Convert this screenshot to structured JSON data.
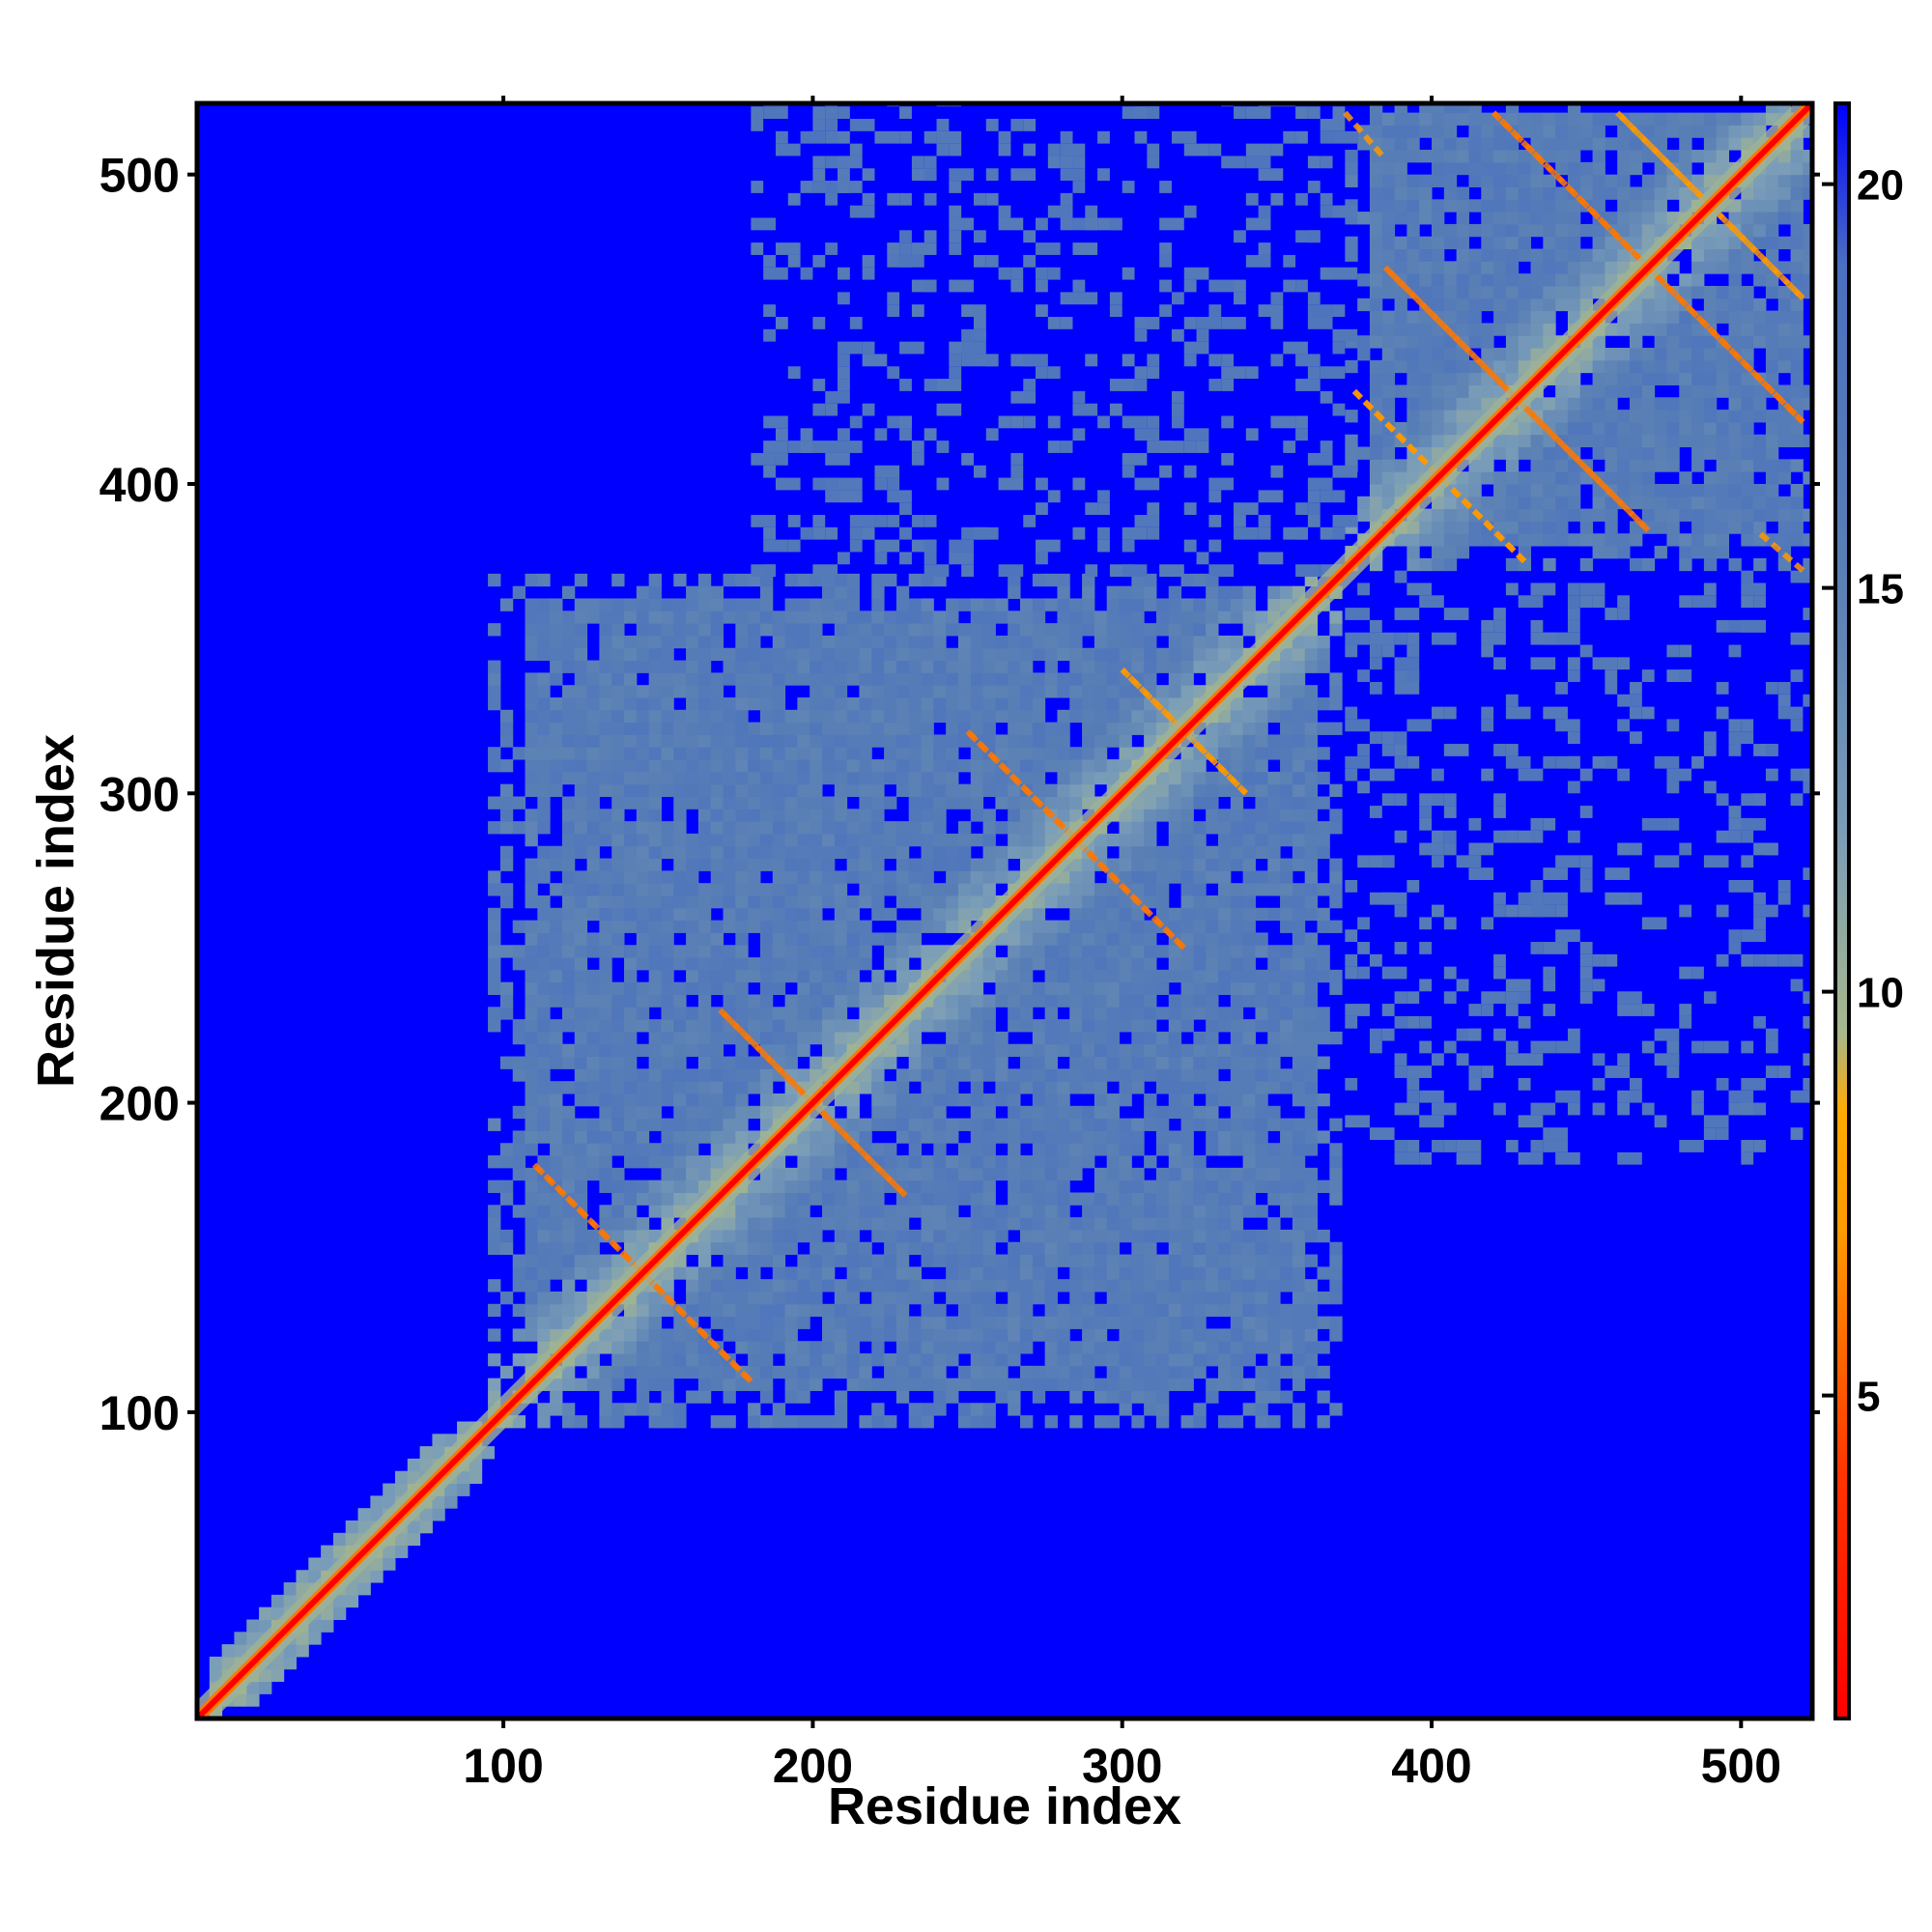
{
  "chart_data": {
    "type": "heatmap",
    "title": "",
    "xlabel": "Residue index",
    "ylabel": "Residue index",
    "xlim": [
      1,
      523
    ],
    "ylim": [
      1,
      523
    ],
    "x_ticks": [
      100,
      200,
      300,
      400,
      500
    ],
    "y_ticks": [
      100,
      200,
      300,
      400,
      500
    ],
    "colorbar": {
      "range": [
        1,
        21
      ],
      "ticks": [
        5,
        10,
        15,
        20
      ],
      "stops": [
        {
          "value": 1,
          "color": "#ff0000"
        },
        {
          "value": 4,
          "color": "#ff3300"
        },
        {
          "value": 7,
          "color": "#ff9900"
        },
        {
          "value": 8.5,
          "color": "#ffaa00"
        },
        {
          "value": 9.5,
          "color": "#a7b88c"
        },
        {
          "value": 12,
          "color": "#7a9db8"
        },
        {
          "value": 15,
          "color": "#5a80b5"
        },
        {
          "value": 19,
          "color": "#4a70c0"
        },
        {
          "value": 21,
          "color": "#0000ff"
        }
      ]
    },
    "background_value": 21,
    "diagonal_value": 1,
    "domain_blocks": [
      {
        "x_range": [
          95,
          370
        ],
        "y_range": [
          95,
          370
        ],
        "value": 16
      },
      {
        "x_range": [
          372,
          523
        ],
        "y_range": [
          372,
          523
        ],
        "value": 16
      },
      {
        "x_range": [
          1,
          95
        ],
        "y_range": [
          1,
          95
        ],
        "value": 14,
        "band_only": true
      }
    ],
    "sparse_regions": [
      {
        "x_range": [
          180,
          370
        ],
        "y_range": [
          370,
          523
        ],
        "value": 17
      },
      {
        "x_range": [
          372,
          523
        ],
        "y_range": [
          180,
          370
        ],
        "value": 17
      }
    ],
    "contact_lines": [
      {
        "from": [
          110,
          180
        ],
        "to": [
          180,
          110
        ],
        "value": 6
      },
      {
        "from": [
          170,
          230
        ],
        "to": [
          230,
          170
        ],
        "value": 6
      },
      {
        "from": [
          250,
          320
        ],
        "to": [
          320,
          250
        ],
        "value": 6
      },
      {
        "from": [
          300,
          340
        ],
        "to": [
          340,
          300
        ],
        "value": 7
      },
      {
        "from": [
          385,
          470
        ],
        "to": [
          470,
          385
        ],
        "value": 6
      },
      {
        "from": [
          420,
          520
        ],
        "to": [
          520,
          420
        ],
        "value": 6
      },
      {
        "from": [
          375,
          430
        ],
        "to": [
          430,
          375
        ],
        "value": 7
      },
      {
        "from": [
          460,
          520
        ],
        "to": [
          520,
          460
        ],
        "value": 7
      },
      {
        "from": [
          372,
          520
        ],
        "to": [
          385,
          505
        ],
        "value": 7
      }
    ]
  }
}
